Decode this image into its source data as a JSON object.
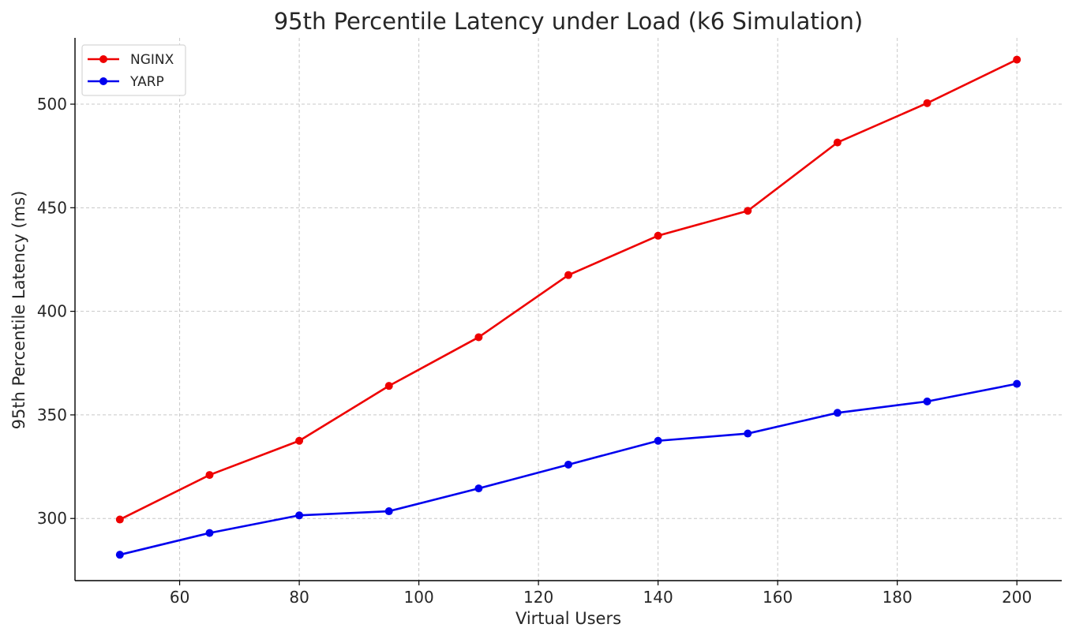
{
  "chart_data": {
    "type": "line",
    "title": "95th Percentile Latency under Load (k6 Simulation)",
    "xlabel": "Virtual Users",
    "ylabel": "95th Percentile Latency (ms)",
    "x": [
      50,
      65,
      80,
      95,
      110,
      125,
      140,
      155,
      170,
      185,
      200
    ],
    "xlim": [
      42.5,
      207.5
    ],
    "ylim": [
      270,
      532
    ],
    "xticks": [
      60,
      80,
      100,
      120,
      140,
      160,
      180,
      200
    ],
    "yticks": [
      300,
      350,
      400,
      450,
      500
    ],
    "grid": true,
    "legend_position": "top-left",
    "series": [
      {
        "name": "NGINX",
        "color": "#ee0000",
        "values": [
          299.5,
          321,
          337.5,
          364,
          387.5,
          417.5,
          436.5,
          448.5,
          481.5,
          500.5,
          521.5
        ]
      },
      {
        "name": "YARP",
        "color": "#0000ee",
        "values": [
          282.5,
          293,
          301.5,
          303.5,
          314.5,
          326,
          337.5,
          341,
          351,
          356.5,
          365
        ]
      }
    ]
  }
}
